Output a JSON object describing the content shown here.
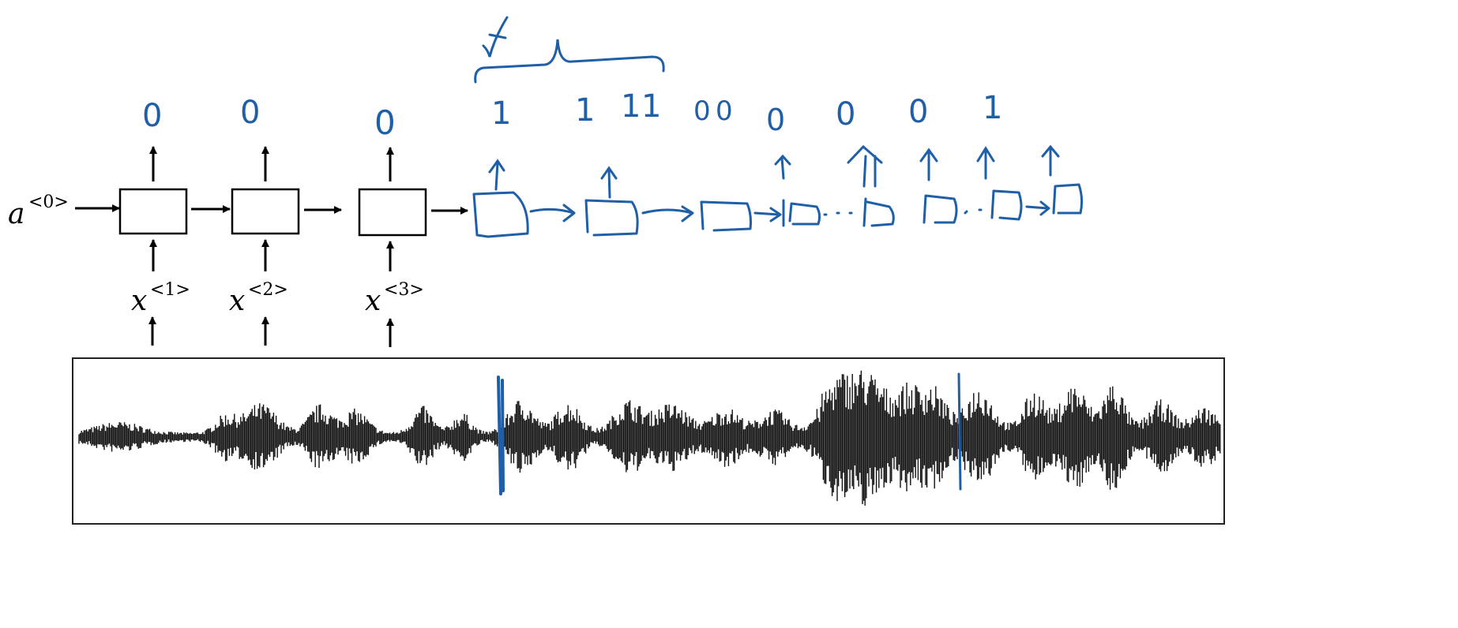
{
  "colors": {
    "ink": "#000000",
    "pen": "#1f5fa8",
    "wave": "#111111"
  },
  "initial_state": {
    "base": "a",
    "sup": "<0>"
  },
  "inputs": [
    {
      "base": "x",
      "sup": "<1>"
    },
    {
      "base": "x",
      "sup": "<2>"
    },
    {
      "base": "x",
      "sup": "<3>"
    }
  ],
  "printed_outputs": [
    "0",
    "0",
    "0"
  ],
  "handwritten_outputs": [
    "1",
    "1",
    "1",
    "1",
    "0",
    "0",
    "0",
    "0",
    "0",
    "1"
  ],
  "icons": {
    "trigger_mark": "checkmark-icon",
    "brace": "curly-brace-icon"
  }
}
